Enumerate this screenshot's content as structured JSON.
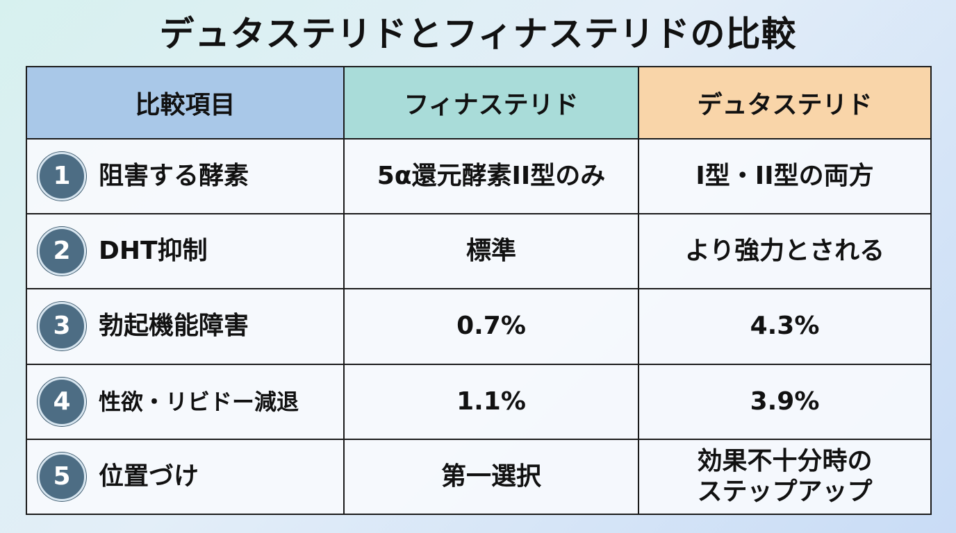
{
  "title": "デュタステリドとフィナステリドの比較",
  "headers": {
    "item": "比較項目",
    "finasteride": "フィナステリド",
    "dutasteride": "デュタステリド"
  },
  "rows": [
    {
      "num": "1",
      "item": "阻害する酵素",
      "finasteride": "5α還元酵素II型のみ",
      "dutasteride": [
        "I型・II型の両方"
      ]
    },
    {
      "num": "2",
      "item": "DHT抑制",
      "finasteride": "標準",
      "dutasteride": [
        "より強力とされる"
      ]
    },
    {
      "num": "3",
      "item": "勃起機能障害",
      "finasteride": "0.7%",
      "dutasteride": [
        "4.3%"
      ]
    },
    {
      "num": "4",
      "item": "性欲・リビドー減退",
      "finasteride": "1.1%",
      "dutasteride": [
        "3.9%"
      ]
    },
    {
      "num": "5",
      "item": "位置づけ",
      "finasteride": "第一選択",
      "dutasteride": [
        "効果不十分時の",
        "ステップアップ"
      ]
    }
  ],
  "colors": {
    "header_item": "#a9c8e8",
    "header_finasteride": "#a9dcd9",
    "header_dutasteride": "#f9d5a9",
    "number_badge": "#4d6d84"
  }
}
